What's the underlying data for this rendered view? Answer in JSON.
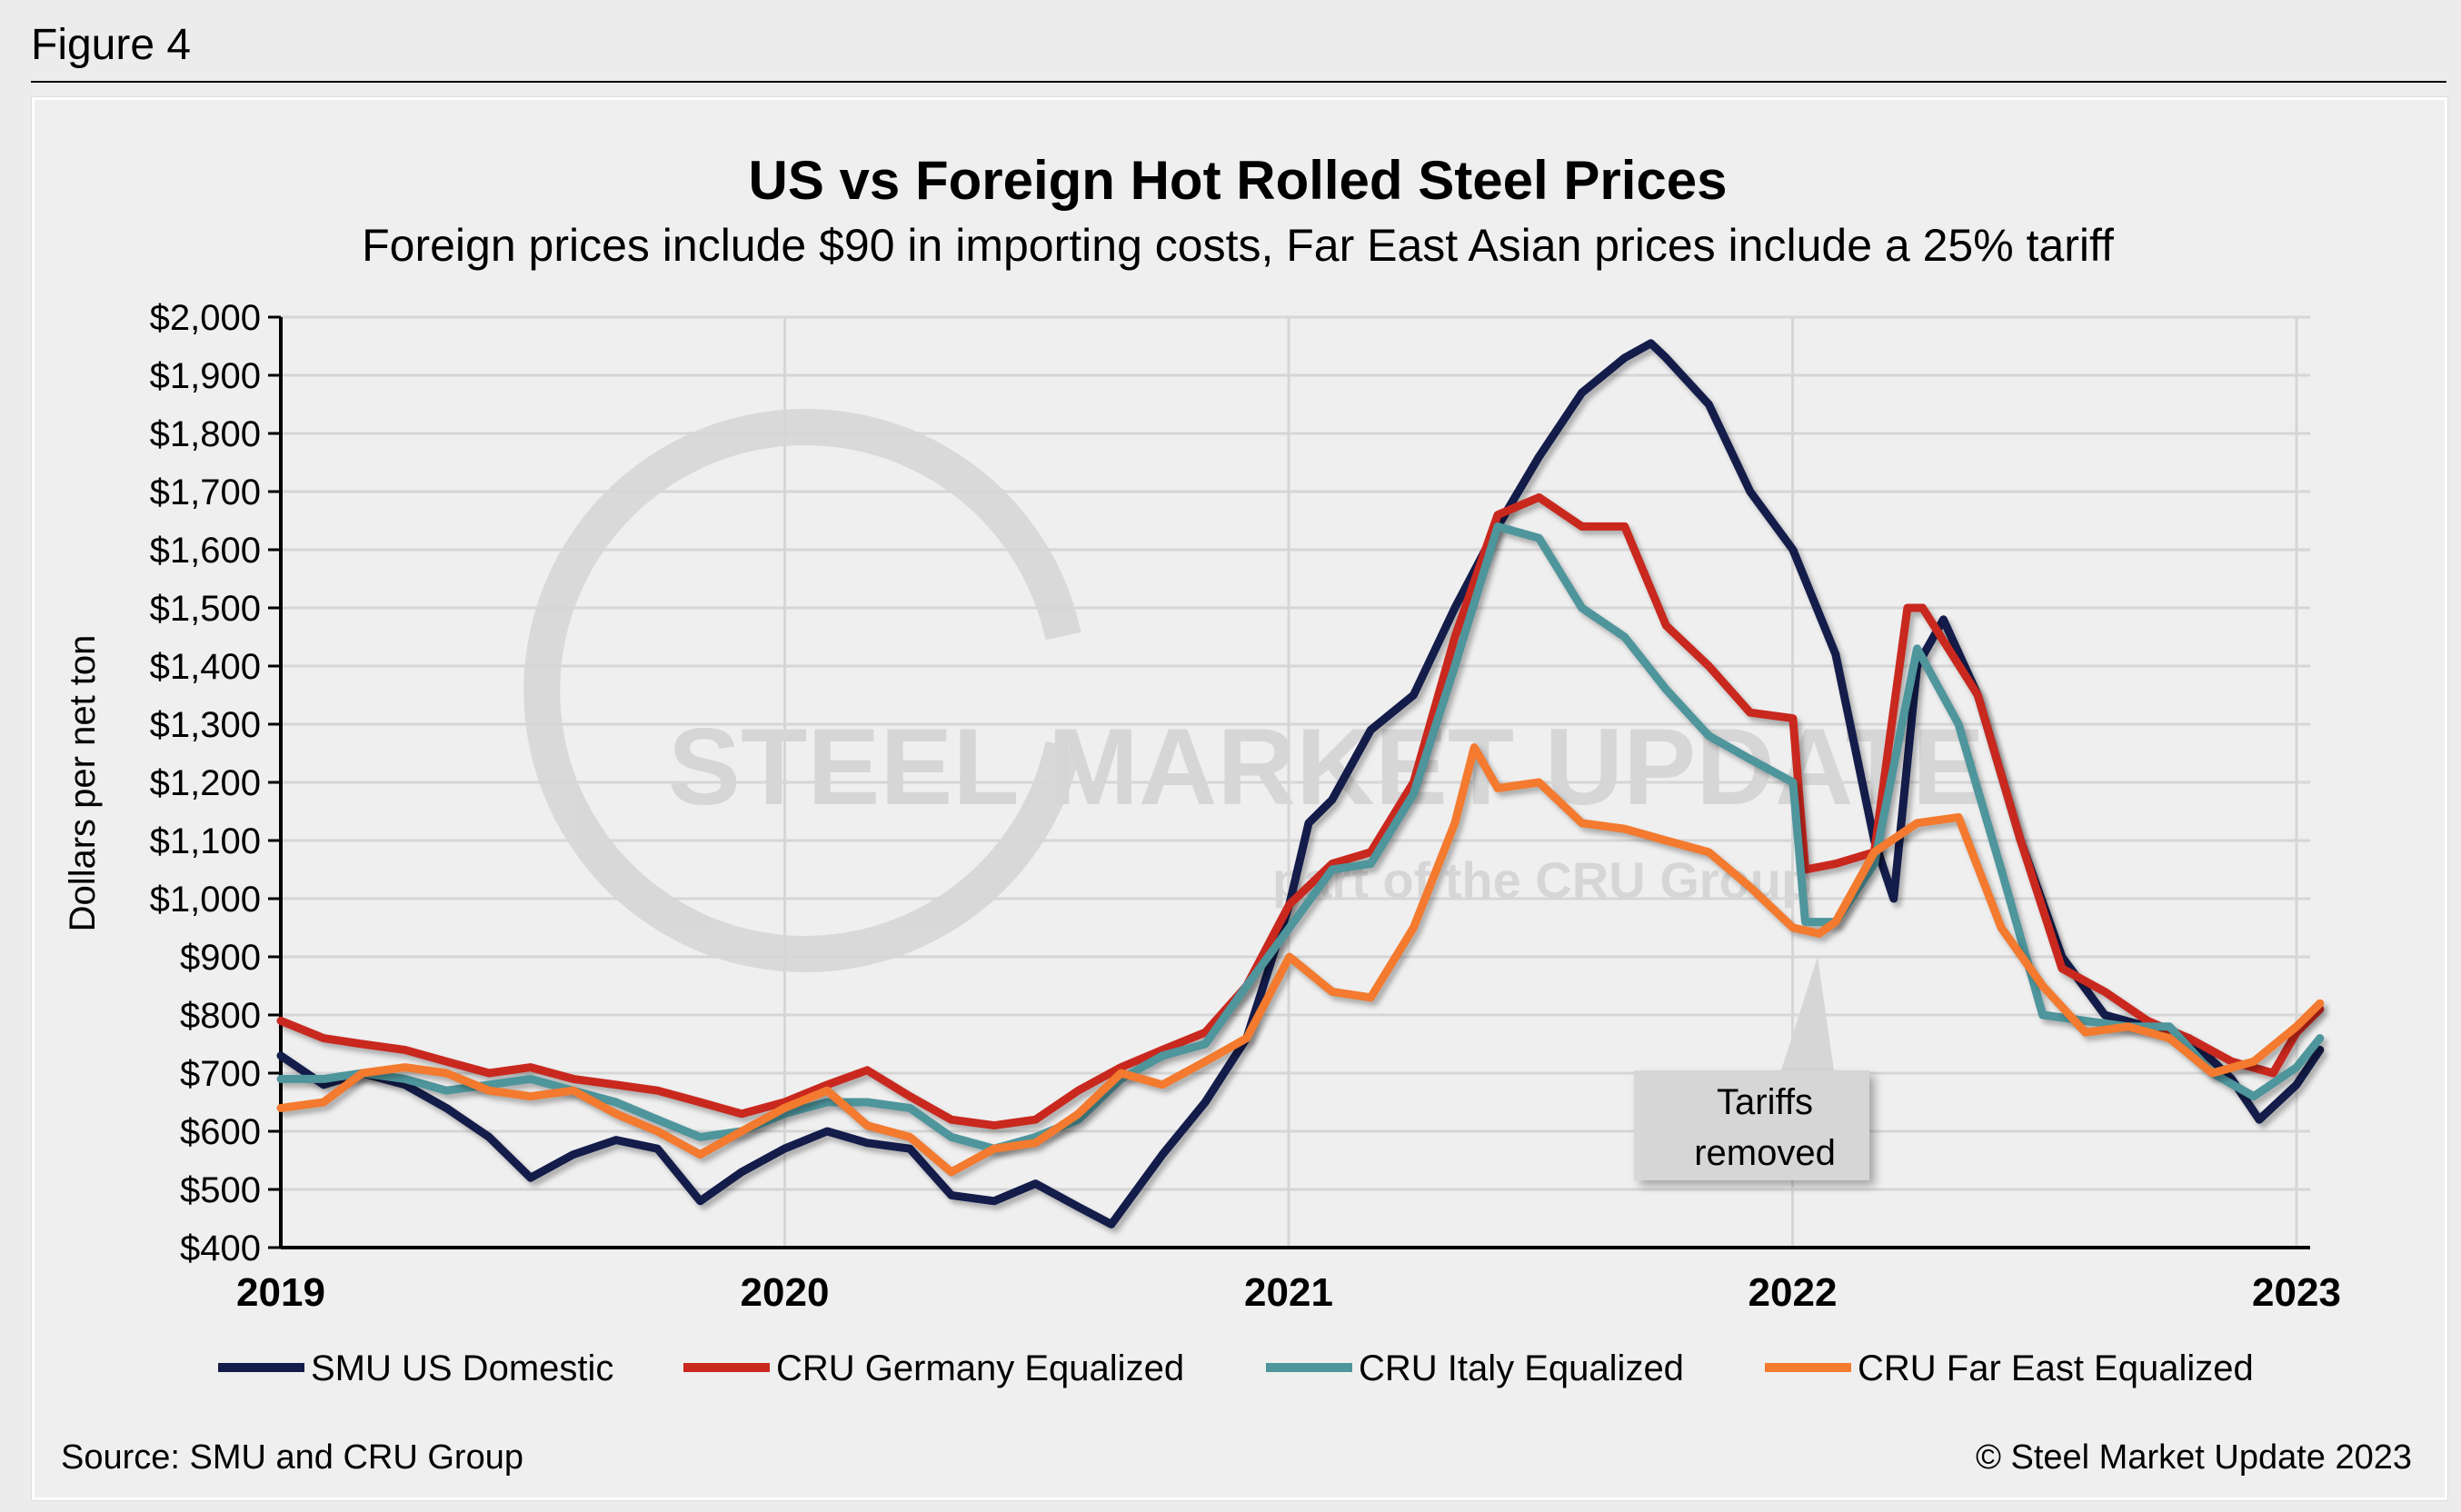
{
  "figure_label": "Figure 4",
  "source": "Source: SMU and CRU Group",
  "copyright": "© Steel Market Update 2023",
  "watermark": {
    "main": "STEEL MARKET UPDATE",
    "sub": "part of the CRU Group"
  },
  "chart_data": {
    "type": "line",
    "title": "US vs Foreign Hot Rolled Steel Prices",
    "subtitle": "Foreign prices include $90 in importing costs, Far East Asian prices include a 25% tariff",
    "ylabel": "Dollars per net ton",
    "xlabel": "",
    "ylim": [
      400,
      2000
    ],
    "xlim": [
      "2019-01-01",
      "2023-01-20"
    ],
    "yticks": [
      "$400",
      "$500",
      "$600",
      "$700",
      "$800",
      "$900",
      "$1,000",
      "$1,100",
      "$1,200",
      "$1,300",
      "$1,400",
      "$1,500",
      "$1,600",
      "$1,700",
      "$1,800",
      "$1,900",
      "$2,000"
    ],
    "xticks": [
      "2019",
      "2020",
      "2021",
      "2022",
      "2023"
    ],
    "grid": true,
    "legend_position": "bottom",
    "annotation": {
      "text_line1": "Tariffs",
      "text_line2": "removed",
      "date": "2022-01-20",
      "value": 940
    },
    "series": [
      {
        "name": "SMU US Domestic",
        "color": "#141c4a",
        "points": [
          [
            "2019-01-01",
            730
          ],
          [
            "2019-02-01",
            680
          ],
          [
            "2019-03-01",
            700
          ],
          [
            "2019-04-01",
            680
          ],
          [
            "2019-05-01",
            640
          ],
          [
            "2019-06-01",
            590
          ],
          [
            "2019-07-01",
            520
          ],
          [
            "2019-08-01",
            560
          ],
          [
            "2019-09-01",
            585
          ],
          [
            "2019-10-01",
            570
          ],
          [
            "2019-11-01",
            480
          ],
          [
            "2019-12-01",
            530
          ],
          [
            "2020-01-01",
            570
          ],
          [
            "2020-02-01",
            600
          ],
          [
            "2020-03-01",
            580
          ],
          [
            "2020-04-01",
            570
          ],
          [
            "2020-05-01",
            490
          ],
          [
            "2020-06-01",
            480
          ],
          [
            "2020-07-01",
            510
          ],
          [
            "2020-08-01",
            470
          ],
          [
            "2020-08-25",
            440
          ],
          [
            "2020-10-01",
            560
          ],
          [
            "2020-11-01",
            650
          ],
          [
            "2020-12-01",
            760
          ],
          [
            "2021-01-01",
            990
          ],
          [
            "2021-01-15",
            1130
          ],
          [
            "2021-02-01",
            1170
          ],
          [
            "2021-03-01",
            1290
          ],
          [
            "2021-04-01",
            1350
          ],
          [
            "2021-05-01",
            1500
          ],
          [
            "2021-06-01",
            1640
          ],
          [
            "2021-07-01",
            1760
          ],
          [
            "2021-08-01",
            1870
          ],
          [
            "2021-09-01",
            1930
          ],
          [
            "2021-09-20",
            1955
          ],
          [
            "2021-10-01",
            1930
          ],
          [
            "2021-11-01",
            1850
          ],
          [
            "2021-12-01",
            1700
          ],
          [
            "2022-01-01",
            1600
          ],
          [
            "2022-02-01",
            1420
          ],
          [
            "2022-03-01",
            1100
          ],
          [
            "2022-03-15",
            1000
          ],
          [
            "2022-04-01",
            1400
          ],
          [
            "2022-04-20",
            1480
          ],
          [
            "2022-05-15",
            1350
          ],
          [
            "2022-06-15",
            1100
          ],
          [
            "2022-07-15",
            900
          ],
          [
            "2022-08-15",
            800
          ],
          [
            "2022-09-15",
            780
          ],
          [
            "2022-10-15",
            760
          ],
          [
            "2022-11-15",
            690
          ],
          [
            "2022-12-05",
            620
          ],
          [
            "2023-01-01",
            680
          ],
          [
            "2023-01-18",
            740
          ]
        ]
      },
      {
        "name": "CRU Germany Equalized",
        "color": "#c9281e",
        "points": [
          [
            "2019-01-01",
            790
          ],
          [
            "2019-02-01",
            760
          ],
          [
            "2019-03-01",
            750
          ],
          [
            "2019-04-01",
            740
          ],
          [
            "2019-05-01",
            720
          ],
          [
            "2019-06-01",
            700
          ],
          [
            "2019-07-01",
            710
          ],
          [
            "2019-08-01",
            690
          ],
          [
            "2019-09-01",
            680
          ],
          [
            "2019-10-01",
            670
          ],
          [
            "2019-11-01",
            650
          ],
          [
            "2019-12-01",
            630
          ],
          [
            "2020-01-01",
            650
          ],
          [
            "2020-02-01",
            680
          ],
          [
            "2020-03-01",
            705
          ],
          [
            "2020-04-01",
            660
          ],
          [
            "2020-05-01",
            620
          ],
          [
            "2020-06-01",
            610
          ],
          [
            "2020-07-01",
            620
          ],
          [
            "2020-08-01",
            670
          ],
          [
            "2020-09-01",
            710
          ],
          [
            "2020-10-01",
            740
          ],
          [
            "2020-11-01",
            770
          ],
          [
            "2020-12-01",
            850
          ],
          [
            "2021-01-01",
            990
          ],
          [
            "2021-02-01",
            1060
          ],
          [
            "2021-03-01",
            1080
          ],
          [
            "2021-04-01",
            1200
          ],
          [
            "2021-05-01",
            1450
          ],
          [
            "2021-06-01",
            1660
          ],
          [
            "2021-07-01",
            1690
          ],
          [
            "2021-08-01",
            1640
          ],
          [
            "2021-09-01",
            1640
          ],
          [
            "2021-10-01",
            1470
          ],
          [
            "2021-11-01",
            1400
          ],
          [
            "2021-12-01",
            1320
          ],
          [
            "2022-01-01",
            1310
          ],
          [
            "2022-01-10",
            1050
          ],
          [
            "2022-02-01",
            1060
          ],
          [
            "2022-03-01",
            1080
          ],
          [
            "2022-03-25",
            1500
          ],
          [
            "2022-04-05",
            1500
          ],
          [
            "2022-05-15",
            1350
          ],
          [
            "2022-06-15",
            1100
          ],
          [
            "2022-07-15",
            880
          ],
          [
            "2022-08-15",
            840
          ],
          [
            "2022-09-15",
            790
          ],
          [
            "2022-10-15",
            760
          ],
          [
            "2022-11-15",
            720
          ],
          [
            "2022-12-15",
            700
          ],
          [
            "2023-01-01",
            770
          ],
          [
            "2023-01-18",
            810
          ]
        ]
      },
      {
        "name": "CRU Italy Equalized",
        "color": "#4e959c",
        "points": [
          [
            "2019-01-01",
            690
          ],
          [
            "2019-02-01",
            690
          ],
          [
            "2019-03-01",
            700
          ],
          [
            "2019-04-01",
            690
          ],
          [
            "2019-05-01",
            670
          ],
          [
            "2019-06-01",
            680
          ],
          [
            "2019-07-01",
            690
          ],
          [
            "2019-08-01",
            670
          ],
          [
            "2019-09-01",
            650
          ],
          [
            "2019-10-01",
            620
          ],
          [
            "2019-11-01",
            590
          ],
          [
            "2019-12-01",
            600
          ],
          [
            "2020-01-01",
            630
          ],
          [
            "2020-02-01",
            650
          ],
          [
            "2020-03-01",
            650
          ],
          [
            "2020-04-01",
            640
          ],
          [
            "2020-05-01",
            590
          ],
          [
            "2020-06-01",
            570
          ],
          [
            "2020-07-01",
            590
          ],
          [
            "2020-08-01",
            620
          ],
          [
            "2020-09-01",
            690
          ],
          [
            "2020-10-01",
            730
          ],
          [
            "2020-11-01",
            750
          ],
          [
            "2020-12-01",
            850
          ],
          [
            "2021-01-01",
            950
          ],
          [
            "2021-02-01",
            1050
          ],
          [
            "2021-03-01",
            1060
          ],
          [
            "2021-04-01",
            1180
          ],
          [
            "2021-05-01",
            1400
          ],
          [
            "2021-06-01",
            1640
          ],
          [
            "2021-07-01",
            1620
          ],
          [
            "2021-08-01",
            1500
          ],
          [
            "2021-09-01",
            1450
          ],
          [
            "2021-10-01",
            1360
          ],
          [
            "2021-11-01",
            1280
          ],
          [
            "2021-12-01",
            1240
          ],
          [
            "2022-01-01",
            1200
          ],
          [
            "2022-01-10",
            960
          ],
          [
            "2022-02-01",
            960
          ],
          [
            "2022-03-01",
            1060
          ],
          [
            "2022-04-01",
            1430
          ],
          [
            "2022-05-01",
            1300
          ],
          [
            "2022-06-01",
            1050
          ],
          [
            "2022-07-01",
            800
          ],
          [
            "2022-08-01",
            790
          ],
          [
            "2022-09-01",
            780
          ],
          [
            "2022-10-01",
            780
          ],
          [
            "2022-11-01",
            700
          ],
          [
            "2022-12-01",
            660
          ],
          [
            "2023-01-01",
            710
          ],
          [
            "2023-01-18",
            760
          ]
        ]
      },
      {
        "name": "CRU Far East Equalized",
        "color": "#f37a2e",
        "points": [
          [
            "2019-01-01",
            640
          ],
          [
            "2019-02-01",
            650
          ],
          [
            "2019-03-01",
            700
          ],
          [
            "2019-04-01",
            710
          ],
          [
            "2019-05-01",
            700
          ],
          [
            "2019-06-01",
            670
          ],
          [
            "2019-07-01",
            660
          ],
          [
            "2019-08-01",
            670
          ],
          [
            "2019-09-01",
            630
          ],
          [
            "2019-10-01",
            600
          ],
          [
            "2019-11-01",
            560
          ],
          [
            "2019-12-01",
            600
          ],
          [
            "2020-01-01",
            640
          ],
          [
            "2020-02-01",
            670
          ],
          [
            "2020-03-01",
            610
          ],
          [
            "2020-04-01",
            590
          ],
          [
            "2020-05-01",
            530
          ],
          [
            "2020-06-01",
            570
          ],
          [
            "2020-07-01",
            580
          ],
          [
            "2020-08-01",
            630
          ],
          [
            "2020-09-01",
            700
          ],
          [
            "2020-10-01",
            680
          ],
          [
            "2020-11-01",
            720
          ],
          [
            "2020-12-01",
            760
          ],
          [
            "2021-01-01",
            900
          ],
          [
            "2021-02-01",
            840
          ],
          [
            "2021-03-01",
            830
          ],
          [
            "2021-04-01",
            950
          ],
          [
            "2021-05-01",
            1130
          ],
          [
            "2021-05-15",
            1260
          ],
          [
            "2021-06-01",
            1190
          ],
          [
            "2021-07-01",
            1200
          ],
          [
            "2021-08-01",
            1130
          ],
          [
            "2021-09-01",
            1120
          ],
          [
            "2021-10-01",
            1100
          ],
          [
            "2021-11-01",
            1080
          ],
          [
            "2021-12-01",
            1020
          ],
          [
            "2022-01-01",
            950
          ],
          [
            "2022-01-20",
            940
          ],
          [
            "2022-02-01",
            960
          ],
          [
            "2022-03-01",
            1080
          ],
          [
            "2022-04-01",
            1130
          ],
          [
            "2022-05-01",
            1140
          ],
          [
            "2022-06-01",
            950
          ],
          [
            "2022-07-01",
            850
          ],
          [
            "2022-08-01",
            770
          ],
          [
            "2022-09-01",
            780
          ],
          [
            "2022-10-01",
            760
          ],
          [
            "2022-11-01",
            700
          ],
          [
            "2022-12-01",
            720
          ],
          [
            "2023-01-01",
            780
          ],
          [
            "2023-01-18",
            820
          ]
        ]
      }
    ]
  }
}
